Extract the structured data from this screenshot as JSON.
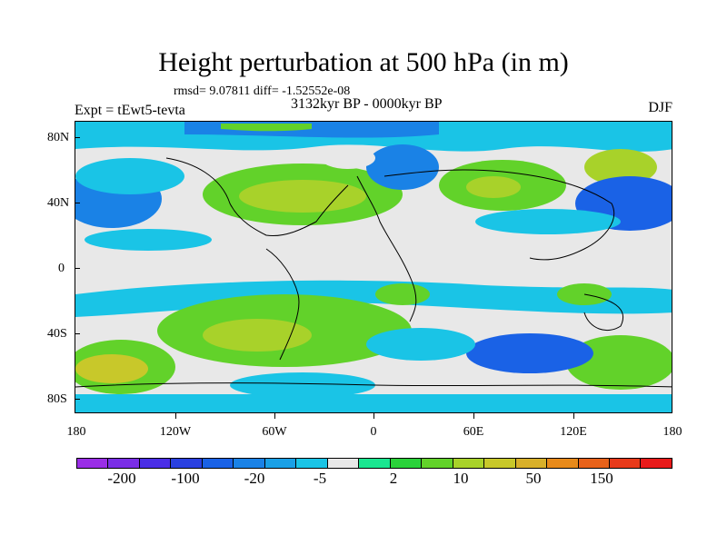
{
  "title": "Height perturbation at 500 hPa (in m)",
  "stats": "rmsd= 9.07811 diff= -1.52552e-08",
  "period": "3132kyr BP - 0000kyr BP",
  "experiment": "Expt = tEwt5-tevta",
  "season": "DJF",
  "lat_labels": [
    "80N",
    "40N",
    "0",
    "40S",
    "80S"
  ],
  "lon_labels": [
    "180",
    "120W",
    "60W",
    "0",
    "60E",
    "120E",
    "180"
  ],
  "colorbar": {
    "colors": [
      "#9a2ee6",
      "#7a2ee6",
      "#4a2ee6",
      "#2a40e0",
      "#1a62e6",
      "#1a82e6",
      "#1aa0e6",
      "#1ac4e6",
      "#e8e8e8",
      "#1ae690",
      "#2ad23a",
      "#62d22a",
      "#a8d22a",
      "#c8c82a",
      "#d8b02a",
      "#e88a1a",
      "#e8621a",
      "#e83a1a",
      "#e81a1a"
    ],
    "labels": [
      "-200",
      "-100",
      "-20",
      "-5",
      "2",
      "10",
      "50",
      "150"
    ]
  }
}
